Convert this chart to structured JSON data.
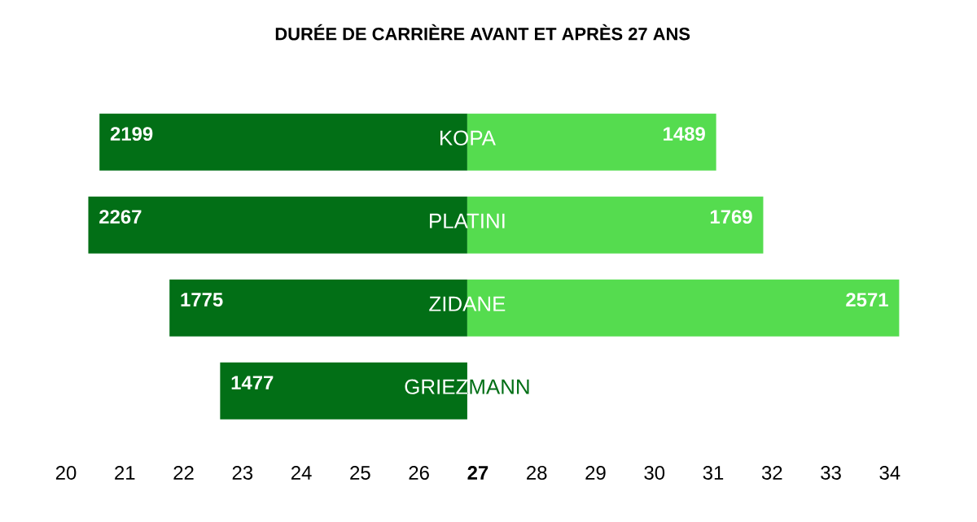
{
  "chart_data": {
    "type": "bar",
    "orientation": "horizontal",
    "title": "DURÉE DE CARRIÈRE AVANT ET APRÈS 27 ANS",
    "categories": [
      "KOPA",
      "PLATINI",
      "ZIDANE",
      "GRIEZMANN"
    ],
    "series": [
      {
        "color": "#026f16",
        "base": [
          20.57,
          20.38,
          21.76,
          22.62
        ],
        "values": [
          6.25,
          6.44,
          5.06,
          4.2
        ]
      },
      {
        "color": "#55dc4f",
        "base": [
          26.82,
          26.82,
          26.82,
          null
        ],
        "values": [
          4.23,
          5.03,
          7.34,
          null
        ]
      }
    ],
    "annotations": [
      {
        "text": "2199",
        "x": 20.57,
        "y": "KOPA"
      },
      {
        "text": "2267",
        "x": 20.38,
        "y": "PLATINI"
      },
      {
        "text": "1775",
        "x": 21.76,
        "y": "ZIDANE"
      },
      {
        "text": "1477",
        "x": 22.62,
        "y": "GRIEZMANN"
      },
      {
        "text": "1489",
        "x": 31.05,
        "y": "KOPA"
      },
      {
        "text": "1769",
        "x": 31.85,
        "y": "PLATINI"
      },
      {
        "text": "2571",
        "x": 34.16,
        "y": "ZIDANE"
      }
    ],
    "xlim": [
      20,
      34.16
    ],
    "xticks": [
      20,
      21,
      22,
      23,
      24,
      25,
      26,
      {
        "value": 27,
        "label": "**27**"
      },
      28,
      29,
      30,
      31,
      32,
      33,
      34
    ]
  }
}
